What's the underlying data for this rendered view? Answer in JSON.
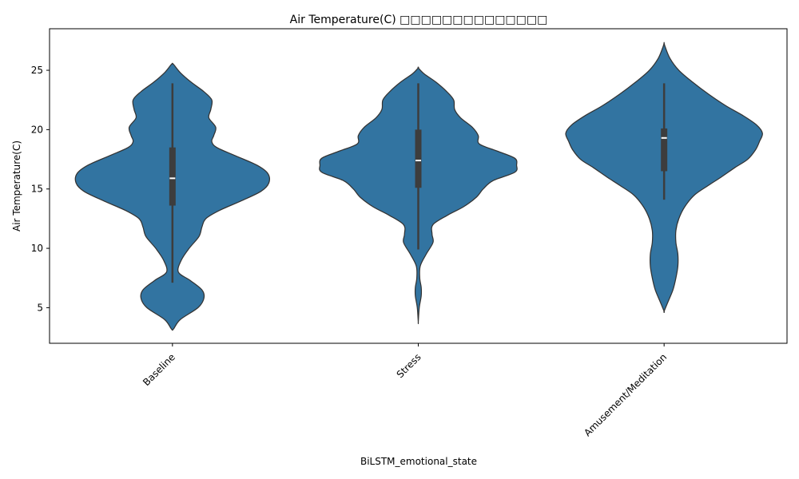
{
  "chart_data": {
    "type": "violin",
    "title": "Air Temperature(C) □□□□□□□□□□□□□□",
    "xlabel": "BiLSTM_emotional_state",
    "ylabel": "Air Temperature(C)",
    "ylim": [
      2,
      28.5
    ],
    "yticks": [
      5,
      10,
      15,
      20,
      25
    ],
    "categories": [
      "Baseline",
      "Stress",
      "Amusement/Meditation"
    ],
    "grid": false,
    "legend": "none",
    "colors": {
      "fill": "#3274a1",
      "stroke": "#333333",
      "box": "#3d3d3d",
      "median": "#ffffff"
    },
    "violins": [
      {
        "category": "Baseline",
        "stats": {
          "whisker_low": 7.1,
          "q1": 13.6,
          "median": 15.9,
          "q3": 18.5,
          "whisker_high": 23.9
        },
        "density_profile": [
          [
            3.2,
            0.01
          ],
          [
            4.0,
            0.08
          ],
          [
            5.0,
            0.26
          ],
          [
            5.8,
            0.32
          ],
          [
            6.5,
            0.3
          ],
          [
            7.3,
            0.18
          ],
          [
            8.0,
            0.06
          ],
          [
            9.0,
            0.09
          ],
          [
            10.0,
            0.17
          ],
          [
            11.0,
            0.27
          ],
          [
            11.8,
            0.3
          ],
          [
            12.5,
            0.34
          ],
          [
            13.2,
            0.48
          ],
          [
            14.0,
            0.7
          ],
          [
            14.8,
            0.9
          ],
          [
            15.5,
            0.98
          ],
          [
            16.3,
            0.97
          ],
          [
            17.0,
            0.86
          ],
          [
            17.8,
            0.64
          ],
          [
            18.5,
            0.45
          ],
          [
            19.0,
            0.4
          ],
          [
            19.5,
            0.42
          ],
          [
            20.2,
            0.44
          ],
          [
            21.0,
            0.37
          ],
          [
            21.7,
            0.39
          ],
          [
            22.5,
            0.4
          ],
          [
            23.2,
            0.32
          ],
          [
            24.0,
            0.19
          ],
          [
            24.8,
            0.08
          ],
          [
            25.5,
            0.01
          ]
        ]
      },
      {
        "category": "Stress",
        "stats": {
          "whisker_low": 9.9,
          "q1": 15.1,
          "median": 17.4,
          "q3": 20.0,
          "whisker_high": 23.9
        },
        "density_profile": [
          [
            3.8,
            0.0
          ],
          [
            5.0,
            0.01
          ],
          [
            6.0,
            0.03
          ],
          [
            6.7,
            0.03
          ],
          [
            7.5,
            0.015
          ],
          [
            8.5,
            0.02
          ],
          [
            9.5,
            0.08
          ],
          [
            10.5,
            0.15
          ],
          [
            11.2,
            0.14
          ],
          [
            12.0,
            0.15
          ],
          [
            12.8,
            0.3
          ],
          [
            13.5,
            0.46
          ],
          [
            14.3,
            0.59
          ],
          [
            15.0,
            0.66
          ],
          [
            15.7,
            0.76
          ],
          [
            16.4,
            0.98
          ],
          [
            17.0,
            1.0
          ],
          [
            17.6,
            0.98
          ],
          [
            18.2,
            0.8
          ],
          [
            18.8,
            0.62
          ],
          [
            19.5,
            0.61
          ],
          [
            20.2,
            0.55
          ],
          [
            21.0,
            0.43
          ],
          [
            21.7,
            0.37
          ],
          [
            22.5,
            0.36
          ],
          [
            23.2,
            0.29
          ],
          [
            24.0,
            0.18
          ],
          [
            24.7,
            0.06
          ],
          [
            25.2,
            0.0
          ]
        ]
      },
      {
        "category": "Amusement/Meditation",
        "stats": {
          "whisker_low": 14.1,
          "q1": 16.5,
          "median": 19.3,
          "q3": 20.1,
          "whisker_high": 23.9
        },
        "density_profile": [
          [
            4.7,
            0.0
          ],
          [
            5.5,
            0.04
          ],
          [
            6.5,
            0.09
          ],
          [
            7.5,
            0.12
          ],
          [
            8.5,
            0.14
          ],
          [
            9.5,
            0.14
          ],
          [
            10.5,
            0.12
          ],
          [
            11.5,
            0.12
          ],
          [
            12.5,
            0.15
          ],
          [
            13.5,
            0.21
          ],
          [
            14.5,
            0.31
          ],
          [
            15.3,
            0.45
          ],
          [
            16.0,
            0.58
          ],
          [
            16.8,
            0.72
          ],
          [
            17.5,
            0.85
          ],
          [
            18.3,
            0.93
          ],
          [
            19.0,
            0.97
          ],
          [
            19.7,
            1.0
          ],
          [
            20.4,
            0.94
          ],
          [
            21.2,
            0.8
          ],
          [
            22.0,
            0.63
          ],
          [
            23.0,
            0.45
          ],
          [
            24.0,
            0.29
          ],
          [
            25.0,
            0.15
          ],
          [
            26.0,
            0.06
          ],
          [
            27.0,
            0.01
          ],
          [
            27.3,
            0.0
          ]
        ]
      }
    ]
  }
}
